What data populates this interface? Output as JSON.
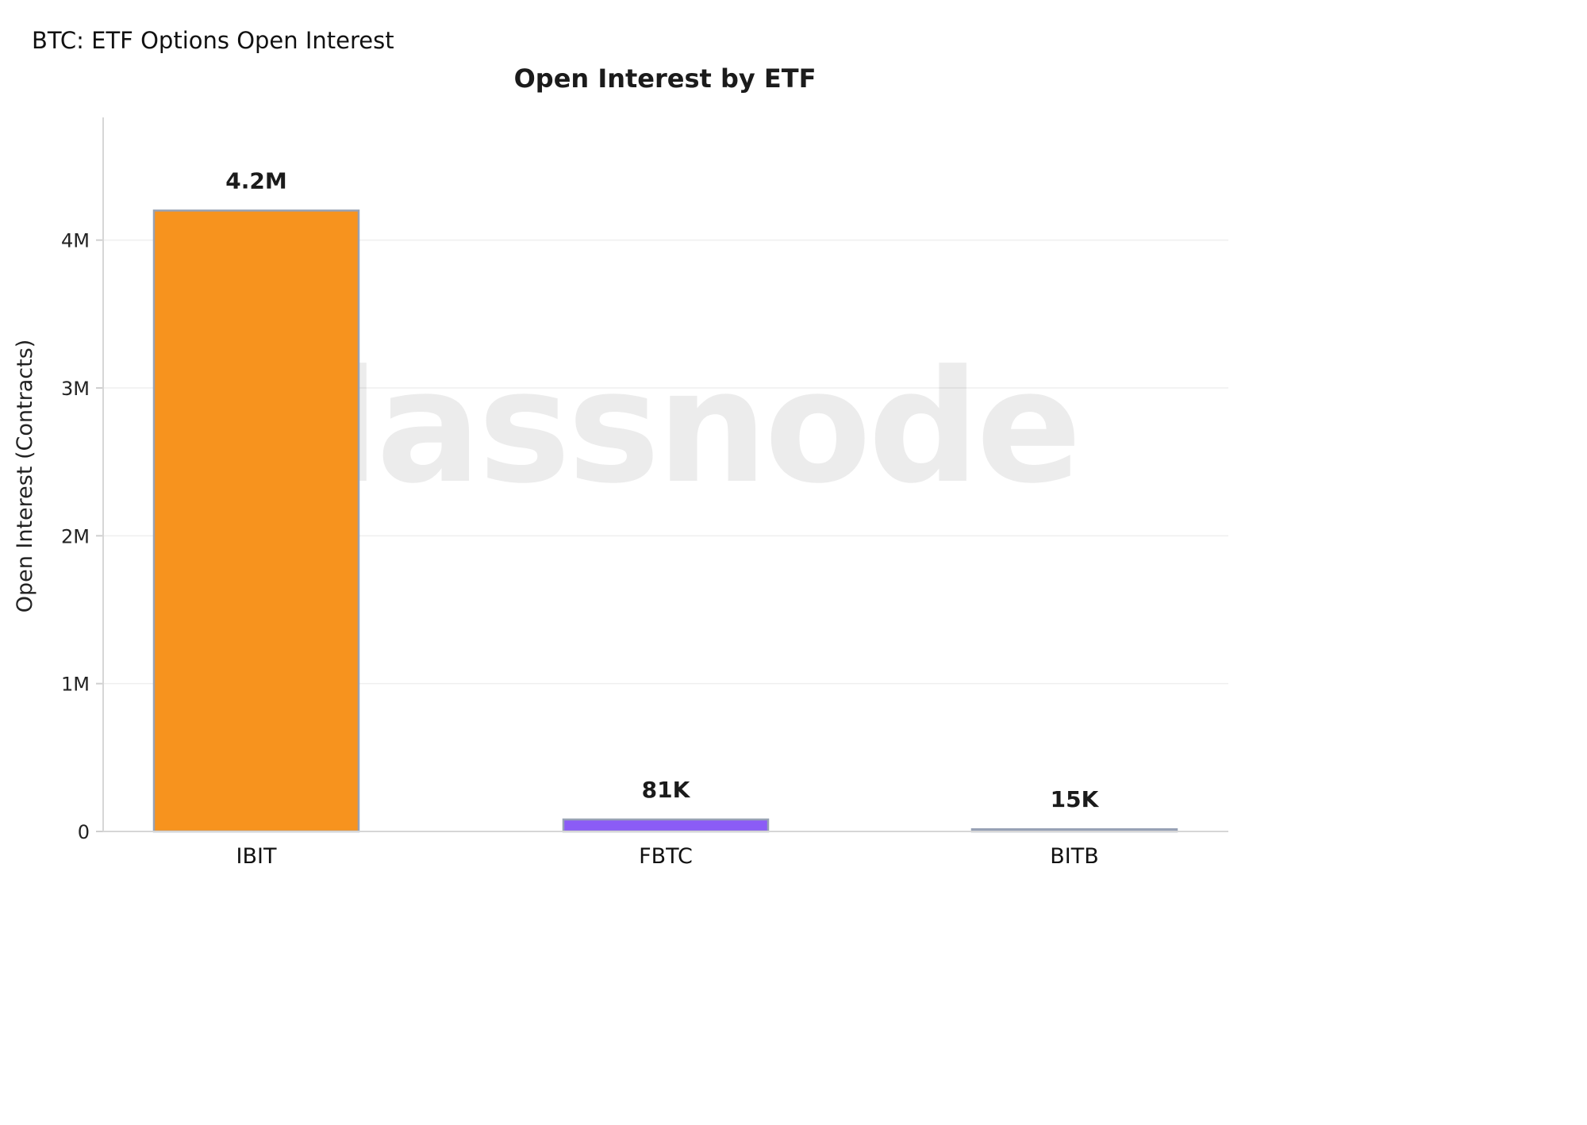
{
  "header": {
    "title": "BTC: ETF Options Open Interest"
  },
  "watermark": "glassnode",
  "colors": {
    "ibit": "#f7931e",
    "fbtc": "#8b5cf6",
    "bitb": "#9ca3c0",
    "bar_outline": "#97a1b4"
  },
  "chart_data": {
    "type": "bar",
    "title": "Open Interest by ETF",
    "xlabel": "",
    "ylabel": "Open Interest (Contracts)",
    "categories": [
      "IBIT",
      "FBTC",
      "BITB"
    ],
    "values": [
      4200000,
      81000,
      15000
    ],
    "data_labels": [
      "4.2M",
      "81K",
      "15K"
    ],
    "bar_colors": [
      "#f7931e",
      "#8b5cf6",
      "#9ca3c0"
    ],
    "ylim": [
      0,
      4830000
    ],
    "yticks": [
      0,
      1000000,
      2000000,
      3000000,
      4000000
    ],
    "ytick_labels": [
      "0",
      "1M",
      "2M",
      "3M",
      "4M"
    ],
    "grid": true,
    "legend": false
  }
}
